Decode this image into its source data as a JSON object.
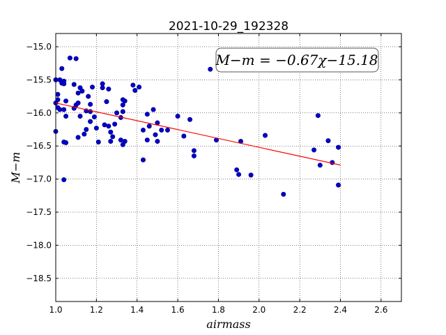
{
  "chart_data": {
    "type": "scatter",
    "title": "2021-10-29_192328",
    "xlabel": "airmass",
    "ylabel": "M−m",
    "xlim": [
      1.0,
      2.7
    ],
    "ylim": [
      -18.85,
      -14.8
    ],
    "y_inverted": true,
    "x_ticks": [
      1.0,
      1.2,
      1.4,
      1.6,
      1.8,
      2.0,
      2.2,
      2.4,
      2.6
    ],
    "x_tick_labels": [
      "1.0",
      "1.2",
      "1.4",
      "1.6",
      "1.8",
      "2.0",
      "2.2",
      "2.4",
      "2.6"
    ],
    "y_ticks": [
      -15.0,
      -15.5,
      -16.0,
      -16.5,
      -17.0,
      -17.5,
      -18.0,
      -18.5
    ],
    "y_tick_labels": [
      "−15.0",
      "−15.5",
      "−16.0",
      "−16.5",
      "−17.0",
      "−17.5",
      "−18.0",
      "−18.5"
    ],
    "grid": true,
    "annotation": "M−m = −0.67χ−15.18",
    "fit": {
      "slope": -0.67,
      "intercept": -15.18,
      "x_range": [
        1.0,
        2.4
      ],
      "color": "#ff0000"
    },
    "marker_color": "#0000cc",
    "points": [
      [
        1.0,
        -15.5
      ],
      [
        1.0,
        -15.85
      ],
      [
        1.0,
        -16.28
      ],
      [
        1.01,
        -15.72
      ],
      [
        1.01,
        -15.8
      ],
      [
        1.01,
        -15.92
      ],
      [
        1.02,
        -15.5
      ],
      [
        1.02,
        -15.95
      ],
      [
        1.03,
        -15.55
      ],
      [
        1.03,
        -15.33
      ],
      [
        1.04,
        -15.52
      ],
      [
        1.04,
        -15.56
      ],
      [
        1.04,
        -15.95
      ],
      [
        1.04,
        -16.44
      ],
      [
        1.04,
        -17.01
      ],
      [
        1.05,
        -15.82
      ],
      [
        1.05,
        -16.05
      ],
      [
        1.05,
        -16.45
      ],
      [
        1.07,
        -15.17
      ],
      [
        1.09,
        -15.57
      ],
      [
        1.09,
        -15.93
      ],
      [
        1.1,
        -15.18
      ],
      [
        1.1,
        -15.88
      ],
      [
        1.11,
        -15.7
      ],
      [
        1.11,
        -15.85
      ],
      [
        1.11,
        -16.37
      ],
      [
        1.12,
        -15.62
      ],
      [
        1.12,
        -16.05
      ],
      [
        1.13,
        -15.67
      ],
      [
        1.14,
        -16.32
      ],
      [
        1.15,
        -15.97
      ],
      [
        1.15,
        -16.25
      ],
      [
        1.16,
        -15.75
      ],
      [
        1.17,
        -15.87
      ],
      [
        1.17,
        -15.98
      ],
      [
        1.17,
        -16.13
      ],
      [
        1.18,
        -15.61
      ],
      [
        1.19,
        -16.06
      ],
      [
        1.2,
        -16.23
      ],
      [
        1.21,
        -16.44
      ],
      [
        1.23,
        -15.56
      ],
      [
        1.23,
        -15.62
      ],
      [
        1.24,
        -16.18
      ],
      [
        1.25,
        -15.83
      ],
      [
        1.26,
        -15.64
      ],
      [
        1.26,
        -16.2
      ],
      [
        1.27,
        -16.29
      ],
      [
        1.27,
        -16.43
      ],
      [
        1.28,
        -16.36
      ],
      [
        1.29,
        -16.17
      ],
      [
        1.3,
        -16.0
      ],
      [
        1.32,
        -16.07
      ],
      [
        1.32,
        -16.41
      ],
      [
        1.33,
        -15.8
      ],
      [
        1.33,
        -15.88
      ],
      [
        1.33,
        -15.98
      ],
      [
        1.33,
        -16.48
      ],
      [
        1.34,
        -15.82
      ],
      [
        1.34,
        -16.43
      ],
      [
        1.38,
        -15.58
      ],
      [
        1.39,
        -15.66
      ],
      [
        1.41,
        -15.61
      ],
      [
        1.43,
        -16.26
      ],
      [
        1.43,
        -16.71
      ],
      [
        1.45,
        -16.02
      ],
      [
        1.45,
        -16.41
      ],
      [
        1.46,
        -16.2
      ],
      [
        1.48,
        -15.95
      ],
      [
        1.49,
        -16.33
      ],
      [
        1.5,
        -16.15
      ],
      [
        1.5,
        -16.43
      ],
      [
        1.52,
        -16.26
      ],
      [
        1.55,
        -16.26
      ],
      [
        1.6,
        -16.05
      ],
      [
        1.63,
        -16.35
      ],
      [
        1.66,
        -16.1
      ],
      [
        1.68,
        -16.57
      ],
      [
        1.68,
        -16.65
      ],
      [
        1.76,
        -15.34
      ],
      [
        1.79,
        -16.41
      ],
      [
        1.89,
        -16.86
      ],
      [
        1.9,
        -16.93
      ],
      [
        1.91,
        -16.43
      ],
      [
        1.96,
        -16.94
      ],
      [
        2.03,
        -16.34
      ],
      [
        2.12,
        -17.23
      ],
      [
        2.27,
        -16.56
      ],
      [
        2.29,
        -16.04
      ],
      [
        2.3,
        -16.79
      ],
      [
        2.34,
        -16.42
      ],
      [
        2.36,
        -16.75
      ],
      [
        2.39,
        -16.52
      ],
      [
        2.39,
        -17.09
      ]
    ]
  }
}
